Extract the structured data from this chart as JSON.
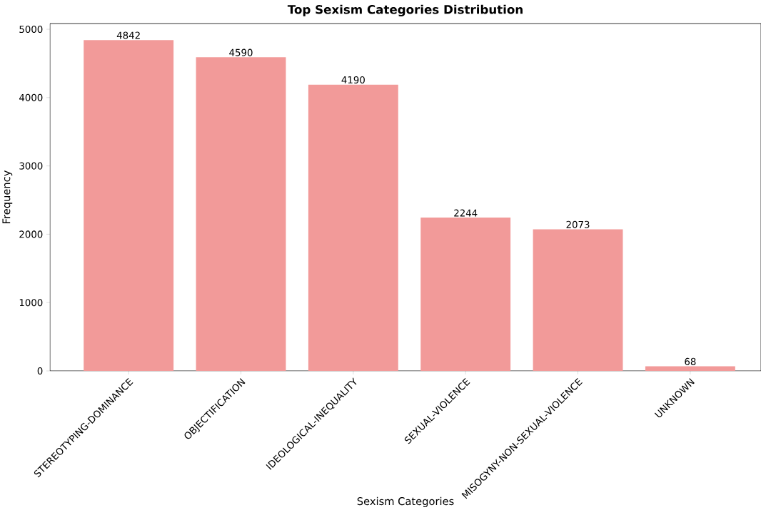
{
  "chart_data": {
    "type": "bar",
    "title": "Top Sexism Categories Distribution",
    "xlabel": "Sexism Categories",
    "ylabel": "Frequency",
    "categories": [
      "STEREOTYPING-DOMINANCE",
      "OBJECTIFICATION",
      "IDEOLOGICAL-INEQUALITY",
      "SEXUAL-VIOLENCE",
      "MISOGYNY-NON-SEXUAL-VIOLENCE",
      "UNKNOWN"
    ],
    "values": [
      4842,
      4590,
      4190,
      2244,
      2073,
      68
    ],
    "color": "#f29a99",
    "ylim": [
      0,
      5084
    ],
    "yticks": [
      0,
      1000,
      2000,
      3000,
      4000,
      5000
    ],
    "data_labels": true
  }
}
